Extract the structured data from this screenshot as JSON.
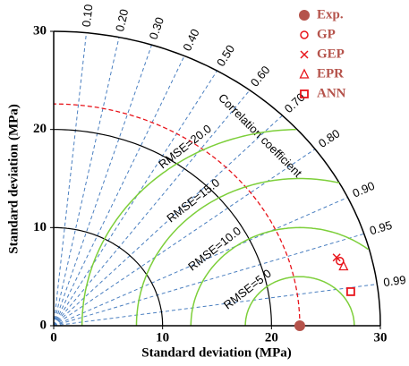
{
  "chart_data": {
    "type": "taylor",
    "x_label": "Standard deviation (MPa)",
    "y_label": "Standard deviation (MPa)",
    "corr_label": "Correlation coefficient",
    "xlim": [
      0,
      30
    ],
    "ylim": [
      0,
      30
    ],
    "xticks": [
      0,
      10,
      20,
      30
    ],
    "yticks": [
      0,
      10,
      20,
      30
    ],
    "std_arcs": [
      10,
      20,
      30
    ],
    "corr_ticks": [
      {
        "value": 0.1,
        "label": "0.10"
      },
      {
        "value": 0.2,
        "label": "0.20"
      },
      {
        "value": 0.3,
        "label": "0.30"
      },
      {
        "value": 0.4,
        "label": "0.40"
      },
      {
        "value": 0.5,
        "label": "0.50"
      },
      {
        "value": 0.6,
        "label": "0.60"
      },
      {
        "value": 0.7,
        "label": "0.70"
      },
      {
        "value": 0.8,
        "label": "0.80"
      },
      {
        "value": 0.9,
        "label": "0.90"
      },
      0.95,
      0.99
    ],
    "rmse_contours": [
      {
        "value": 5,
        "label": "RMSE=5.0"
      },
      {
        "value": 10,
        "label": "RMSE=10.0"
      },
      {
        "value": 15,
        "label": "RMSE=15.0"
      },
      {
        "value": 20,
        "label": "RMSE=20.0"
      }
    ],
    "reference": {
      "name": "Exp.",
      "color": "#b5534b",
      "std": 22.6
    },
    "series": [
      {
        "name": "GP",
        "marker": "circle",
        "color": "#e8141b",
        "std": 27.1,
        "corr": 0.97
      },
      {
        "name": "GEP",
        "marker": "cross",
        "color": "#e8141b",
        "std": 26.9,
        "corr": 0.966
      },
      {
        "name": "EPR",
        "marker": "triangle",
        "color": "#e8141b",
        "std": 27.3,
        "corr": 0.975
      },
      {
        "name": "ANN",
        "marker": "square",
        "color": "#e8141b",
        "std": 27.5,
        "corr": 0.992
      }
    ]
  }
}
